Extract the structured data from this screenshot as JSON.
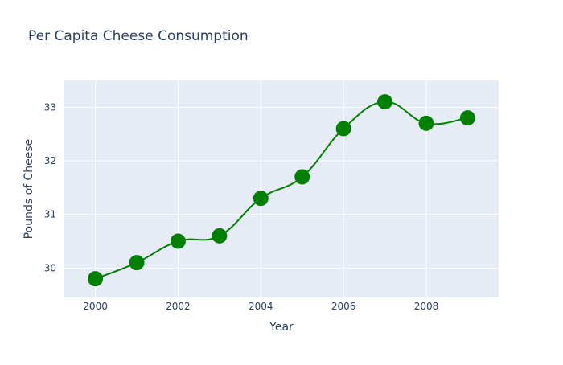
{
  "chart_data": {
    "type": "line",
    "title": "Per Capita Cheese Consumption",
    "xlabel": "Year",
    "ylabel": "Pounds of Cheese",
    "x": [
      2000,
      2001,
      2002,
      2003,
      2004,
      2005,
      2006,
      2007,
      2008,
      2009
    ],
    "series": [
      {
        "values": [
          29.8,
          30.1,
          30.5,
          30.6,
          31.3,
          31.7,
          32.6,
          33.1,
          32.7,
          32.8
        ],
        "color": "#008000",
        "line_shape": "spline",
        "mode": "lines+markers"
      }
    ],
    "xlim": [
      1999.25,
      2009.75
    ],
    "ylim": [
      29.45,
      33.5
    ],
    "xticks": [
      "2000",
      "2002",
      "2004",
      "2006",
      "2008"
    ],
    "yticks": [
      "30",
      "31",
      "32",
      "33"
    ],
    "grid": true,
    "plot_background": "#e5ecf6",
    "grid_color": "#ffffff",
    "text_color": "#2a3f5f"
  }
}
